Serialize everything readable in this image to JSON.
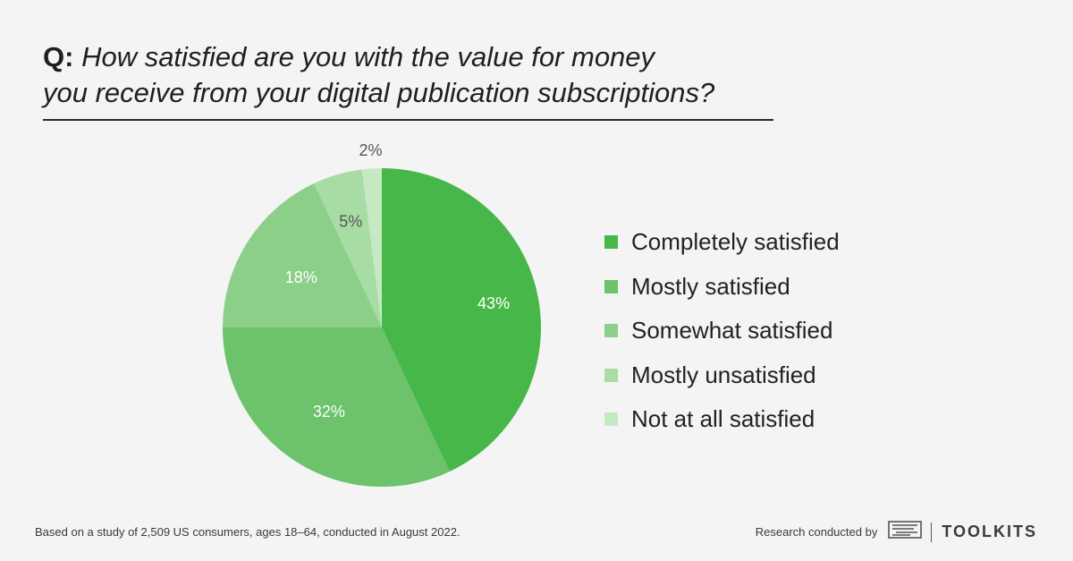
{
  "header": {
    "q_prefix": "Q:",
    "q_line1": "How satisfied are you with the value for money",
    "q_line2": "you receive from your digital publication subscriptions?"
  },
  "chart_data": {
    "type": "pie",
    "categories": [
      "Completely satisfied",
      "Mostly satisfied",
      "Somewhat satisfied",
      "Mostly unsatisfied",
      "Not at all satisfied"
    ],
    "values": [
      43,
      32,
      18,
      5,
      2
    ],
    "labels": [
      "43%",
      "32%",
      "18%",
      "5%",
      "2%"
    ],
    "colors": [
      "#48b749",
      "#6cc36b",
      "#8ccf89",
      "#a8dca5",
      "#c6e9c3"
    ],
    "legend_position": "right"
  },
  "footer": {
    "note": "Based on a study of 2,509 US consumers, ages 18–64, conducted in August 2022.",
    "credit": "Research conducted by",
    "brand": "TOOLKITS",
    "brand_icon": "toolkits-logo-icon"
  }
}
